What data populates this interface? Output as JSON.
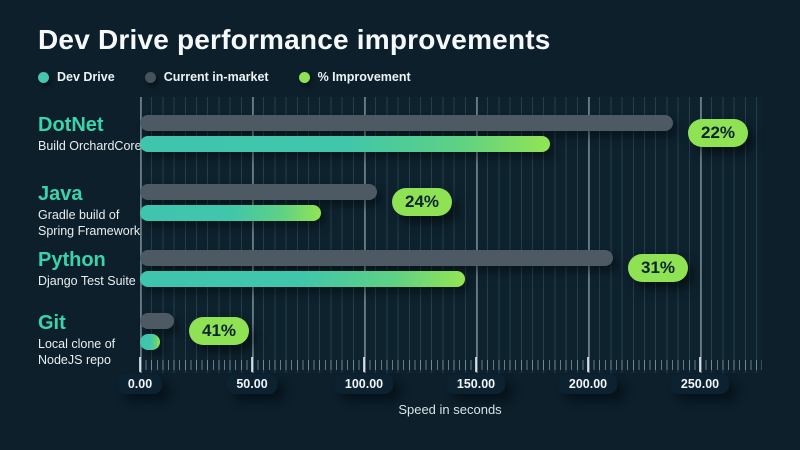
{
  "title": "Dev Drive performance improvements",
  "legend": {
    "items": [
      {
        "label": "Dev Drive",
        "color": "#45c7ad"
      },
      {
        "label": "Current in-market",
        "color": "#46525c"
      },
      {
        "label": "% Improvement",
        "color": "#8ee254"
      }
    ]
  },
  "chart_data": {
    "type": "bar",
    "orientation": "horizontal",
    "title": "Dev Drive performance improvements",
    "xlabel": "Speed in seconds",
    "units": "seconds",
    "xlim": [
      0,
      250
    ],
    "x_ticks": [
      "0.00",
      "50.00",
      "100.00",
      "150.00",
      "200.00",
      "250.00"
    ],
    "grid": "vertical minor lines every 5s, major lines every 50s",
    "legend_position": "top-left",
    "categories": [
      "DotNet",
      "Java",
      "Python",
      "Git"
    ],
    "category_subtitles": [
      [
        "Build OrchardCore"
      ],
      [
        "Gradle build of",
        "Spring Framework"
      ],
      [
        "Django Test Suite"
      ],
      [
        "Local clone of",
        "NodeJS repo"
      ]
    ],
    "series": [
      {
        "name": "Current in-market",
        "color": "#4e5a63",
        "values": [
          238,
          106,
          211,
          15
        ]
      },
      {
        "name": "Dev Drive",
        "color_start": "#3fc5ae",
        "color_end": "#93e553",
        "values": [
          183,
          81,
          145,
          9
        ]
      }
    ],
    "improvement_labels": [
      "22%",
      "24%",
      "31%",
      "41%"
    ]
  },
  "colors": {
    "background": "#0c1f2a",
    "accent_teal": "#3bd3ab",
    "badge_green": "#8ee254",
    "bar_gray": "#4e5a63"
  }
}
